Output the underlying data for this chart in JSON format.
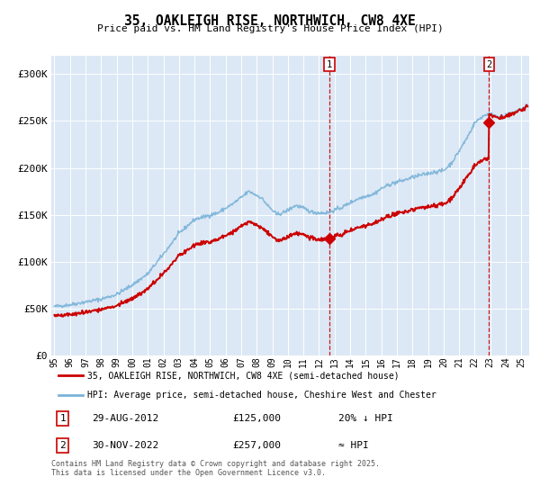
{
  "title": "35, OAKLEIGH RISE, NORTHWICH, CW8 4XE",
  "subtitle": "Price paid vs. HM Land Registry's House Price Index (HPI)",
  "bg_color": "#ffffff",
  "plot_bg_color": "#dce8f5",
  "hpi_color": "#7ab3d9",
  "price_color": "#cc0000",
  "sale1_date": "29-AUG-2012",
  "sale1_price": 125000,
  "sale1_label": "20% ↓ HPI",
  "sale2_date": "30-NOV-2022",
  "sale2_price": 257000,
  "sale2_label": "≈ HPI",
  "sale1_x": 2012.66,
  "sale2_x": 2022.92,
  "legend_line1": "35, OAKLEIGH RISE, NORTHWICH, CW8 4XE (semi-detached house)",
  "legend_line2": "HPI: Average price, semi-detached house, Cheshire West and Chester",
  "footnote": "Contains HM Land Registry data © Crown copyright and database right 2025.\nThis data is licensed under the Open Government Licence v3.0.",
  "ylim": [
    0,
    320000
  ],
  "xlim_start": 1994.8,
  "xlim_end": 2025.5,
  "yticks": [
    0,
    50000,
    100000,
    150000,
    200000,
    250000,
    300000
  ],
  "ytick_labels": [
    "£0",
    "£50K",
    "£100K",
    "£150K",
    "£200K",
    "£250K",
    "£300K"
  ]
}
